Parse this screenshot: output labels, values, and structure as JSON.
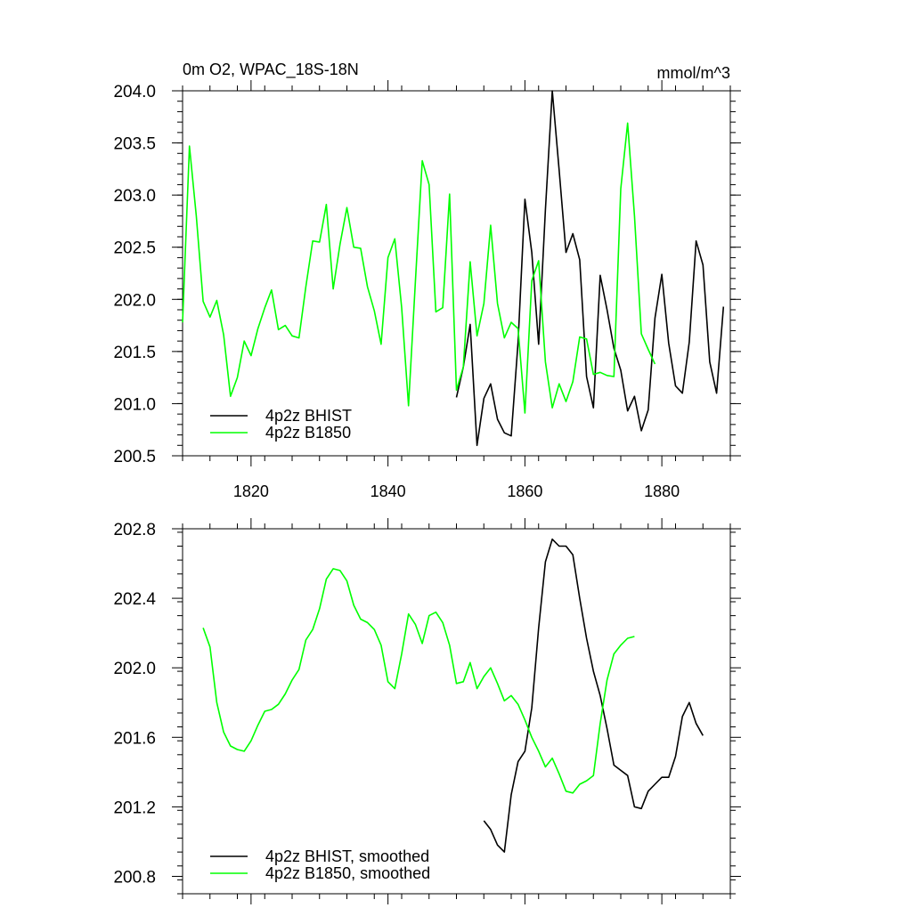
{
  "chart_data": [
    {
      "type": "line",
      "title": "0m O2, WPAC_18S-18N",
      "units": "mmol/m^3",
      "xlim": [
        1810,
        1890
      ],
      "ylim": [
        200.5,
        204.0
      ],
      "xticks": [
        1820,
        1840,
        1860,
        1880
      ],
      "yticks": [
        200.5,
        201.0,
        201.5,
        202.0,
        202.5,
        203.0,
        203.5,
        204.0
      ],
      "ytick_labels": [
        "200.5",
        "201.0",
        "201.5",
        "202.0",
        "202.5",
        "203.0",
        "203.5",
        "204.0"
      ],
      "legend_position": "bottom-left",
      "series": [
        {
          "name": "4p2z BHIST",
          "color": "#000000",
          "x": [
            1850,
            1851,
            1852,
            1853,
            1854,
            1855,
            1856,
            1857,
            1858,
            1859,
            1860,
            1861,
            1862,
            1863,
            1864,
            1865,
            1866,
            1867,
            1868,
            1869,
            1870,
            1871,
            1872,
            1873,
            1874,
            1875,
            1876,
            1877,
            1878,
            1879,
            1880,
            1881,
            1882,
            1883,
            1884,
            1885,
            1886,
            1887,
            1888,
            1889
          ],
          "y": [
            201.06,
            201.35,
            201.76,
            200.6,
            201.05,
            201.19,
            200.85,
            200.72,
            200.69,
            201.59,
            202.96,
            202.45,
            201.57,
            202.86,
            204.0,
            203.24,
            202.45,
            202.63,
            202.38,
            201.26,
            200.96,
            202.23,
            201.9,
            201.53,
            201.32,
            200.93,
            201.07,
            200.74,
            200.94,
            201.82,
            202.24,
            201.58,
            201.17,
            201.1,
            201.59,
            202.56,
            202.33,
            201.4,
            201.1,
            201.93
          ]
        },
        {
          "name": "4p2z B1850",
          "color": "#00ff00",
          "x": [
            1810,
            1811,
            1812,
            1813,
            1814,
            1815,
            1816,
            1817,
            1818,
            1819,
            1820,
            1821,
            1822,
            1823,
            1824,
            1825,
            1826,
            1827,
            1828,
            1829,
            1830,
            1831,
            1832,
            1833,
            1834,
            1835,
            1836,
            1837,
            1838,
            1839,
            1840,
            1841,
            1842,
            1843,
            1844,
            1845,
            1846,
            1847,
            1848,
            1849,
            1850,
            1851,
            1852,
            1853,
            1854,
            1855,
            1856,
            1857,
            1858,
            1859,
            1860,
            1861,
            1862,
            1863,
            1864,
            1865,
            1866,
            1867,
            1868,
            1869,
            1870,
            1871,
            1872,
            1873,
            1874,
            1875,
            1876,
            1877,
            1878,
            1879
          ],
          "y": [
            201.78,
            203.47,
            202.8,
            201.98,
            201.83,
            201.99,
            201.66,
            201.07,
            201.25,
            201.6,
            201.46,
            201.72,
            201.92,
            202.09,
            201.71,
            201.75,
            201.65,
            201.63,
            202.12,
            202.56,
            202.55,
            202.91,
            202.1,
            202.53,
            202.88,
            202.5,
            202.49,
            202.12,
            201.89,
            201.57,
            202.4,
            202.58,
            201.92,
            200.98,
            202.17,
            203.33,
            203.1,
            201.88,
            201.92,
            203.01,
            201.13,
            201.35,
            202.36,
            201.65,
            201.96,
            202.71,
            201.96,
            201.63,
            201.78,
            201.72,
            200.91,
            202.18,
            202.37,
            201.4,
            200.96,
            201.19,
            201.02,
            201.21,
            201.64,
            201.62,
            201.28,
            201.3,
            201.27,
            201.26,
            203.06,
            203.69,
            202.8,
            201.67,
            201.52,
            201.38
          ]
        }
      ]
    },
    {
      "type": "line",
      "xlim": [
        1810,
        1890
      ],
      "ylim": [
        200.7,
        202.8
      ],
      "xticks": [
        1820,
        1840,
        1860,
        1880
      ],
      "yticks": [
        200.8,
        201.2,
        201.6,
        202.0,
        202.4,
        202.8
      ],
      "ytick_labels": [
        "200.8",
        "201.2",
        "201.6",
        "202.0",
        "202.4",
        "202.8"
      ],
      "legend_position": "bottom-left",
      "series": [
        {
          "name": "4p2z BHIST, smoothed",
          "color": "#000000",
          "x": [
            1854,
            1855,
            1856,
            1857,
            1858,
            1859,
            1860,
            1861,
            1862,
            1863,
            1864,
            1865,
            1866,
            1867,
            1868,
            1869,
            1870,
            1871,
            1872,
            1873,
            1874,
            1875,
            1876,
            1877,
            1878,
            1879,
            1880,
            1881,
            1882,
            1883,
            1884,
            1885,
            1886
          ],
          "y": [
            201.12,
            201.07,
            200.98,
            200.94,
            201.27,
            201.46,
            201.52,
            201.77,
            202.23,
            202.61,
            202.74,
            202.7,
            202.7,
            202.65,
            202.4,
            202.17,
            201.98,
            201.84,
            201.65,
            201.44,
            201.41,
            201.38,
            201.2,
            201.19,
            201.29,
            201.33,
            201.37,
            201.37,
            201.49,
            201.72,
            201.8,
            201.68,
            201.61
          ]
        },
        {
          "name": "4p2z B1850, smoothed",
          "color": "#00ff00",
          "x": [
            1813,
            1814,
            1815,
            1816,
            1817,
            1818,
            1819,
            1820,
            1821,
            1822,
            1823,
            1824,
            1825,
            1826,
            1827,
            1828,
            1829,
            1830,
            1831,
            1832,
            1833,
            1834,
            1835,
            1836,
            1837,
            1838,
            1839,
            1840,
            1841,
            1842,
            1843,
            1844,
            1845,
            1846,
            1847,
            1848,
            1849,
            1850,
            1851,
            1852,
            1853,
            1854,
            1855,
            1856,
            1857,
            1858,
            1859,
            1860,
            1861,
            1862,
            1863,
            1864,
            1865,
            1866,
            1867,
            1868,
            1869,
            1870,
            1871,
            1872,
            1873,
            1874,
            1875,
            1876
          ],
          "y": [
            202.23,
            202.12,
            201.8,
            201.63,
            201.55,
            201.53,
            201.52,
            201.58,
            201.67,
            201.75,
            201.76,
            201.79,
            201.85,
            201.93,
            201.99,
            202.16,
            202.22,
            202.34,
            202.51,
            202.57,
            202.56,
            202.5,
            202.36,
            202.28,
            202.26,
            202.22,
            202.13,
            201.92,
            201.88,
            202.08,
            202.31,
            202.25,
            202.14,
            202.3,
            202.32,
            202.26,
            202.13,
            201.91,
            201.92,
            202.03,
            201.88,
            201.95,
            202.0,
            201.91,
            201.81,
            201.84,
            201.79,
            201.7,
            201.6,
            201.52,
            201.43,
            201.48,
            201.39,
            201.29,
            201.28,
            201.33,
            201.35,
            201.38,
            201.68,
            201.93,
            202.08,
            202.13,
            202.17,
            202.18
          ]
        }
      ]
    }
  ]
}
